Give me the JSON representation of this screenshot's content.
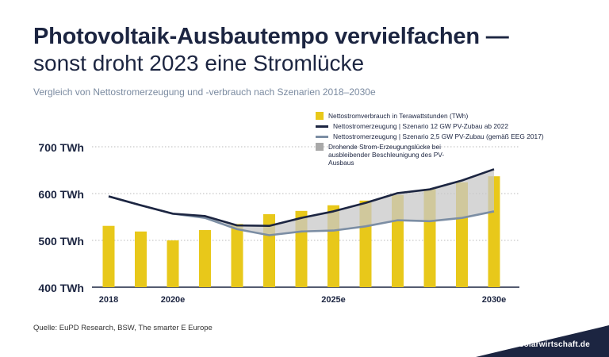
{
  "title_line1": "Photovoltaik-Ausbautempo vervielfachen —",
  "title_line2": "sonst droht 2023 eine Stromlücke",
  "subtitle": "Vergleich von Nettostromerzeugung und -verbrauch nach Szenarien 2018–2030e",
  "source": "Quelle: EuPD Research, BSW, The smarter E Europe",
  "footer_url": "www.solarwirtschaft.de",
  "colors": {
    "navy": "#1c2541",
    "bar": "#e8c81a",
    "line_low": "#7c8ea4",
    "gap_fill": "#c8c8c8",
    "axis_label": "#1c2541"
  },
  "chart_data": {
    "type": "bar",
    "x": [
      2018,
      2019,
      2020,
      2021,
      2022,
      2023,
      2024,
      2025,
      2026,
      2027,
      2028,
      2029,
      2030
    ],
    "x_tick_labels": [
      {
        "x": 2018,
        "label": "2018"
      },
      {
        "x": 2020,
        "label": "2020e"
      },
      {
        "x": 2025,
        "label": "2025e"
      },
      {
        "x": 2030,
        "label": "2030e"
      }
    ],
    "ylim": [
      400,
      700
    ],
    "yticks": [
      400,
      500,
      600,
      700
    ],
    "ytick_labels": [
      "400 TWh",
      "500 TWh",
      "600 TWh",
      "700 TWh"
    ],
    "grid": "horizontal-dotted",
    "legend_position": "top-right",
    "series": [
      {
        "name": "Nettostromverbrauch in Terawattstunden (TWh)",
        "kind": "bar",
        "values": [
          531,
          519,
          500,
          522,
          535,
          556,
          563,
          575,
          585,
          597,
          610,
          624,
          637
        ]
      },
      {
        "name": "Nettostromerzeugung | Szenario 12 GW PV-Zubau ab 2022",
        "kind": "line",
        "values": [
          594,
          575,
          557,
          552,
          532,
          531,
          548,
          562,
          580,
          601,
          609,
          628,
          652
        ]
      },
      {
        "name": "Nettostromerzeugung | Szenario 2,5 GW PV-Zubau (gemäß EEG 2017)",
        "kind": "line",
        "values": [
          594,
          575,
          557,
          548,
          524,
          511,
          519,
          521,
          530,
          543,
          541,
          548,
          562
        ]
      }
    ],
    "area": {
      "name": "Drohende Strom-Erzeugungslücke bei ausbleibender Beschleunigung des PV-Ausbaus",
      "between": [
        "Nettostromerzeugung | Szenario 12 GW PV-Zubau ab 2022",
        "Nettostromerzeugung | Szenario 2,5 GW PV-Zubau (gemäß EEG 2017)"
      ]
    }
  }
}
